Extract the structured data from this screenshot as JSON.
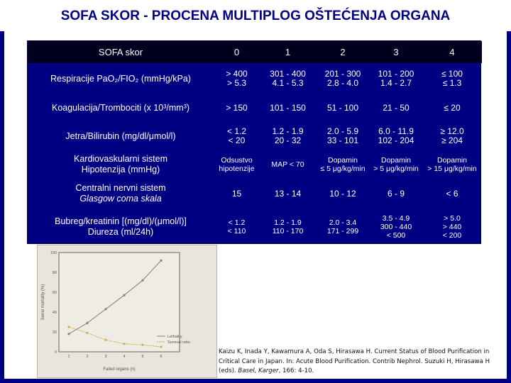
{
  "title": "SOFA SKOR - PROCENA MULTIPLOG OŠTEĆENJA ORGANA",
  "table": {
    "headers": [
      "SOFA skor",
      "0",
      "1",
      "2",
      "3",
      "4"
    ],
    "rows": [
      {
        "label": [
          "Respiracije PaO₂/FIO₂ (mmHg/kPa)"
        ],
        "cells": [
          [
            "> 400",
            "> 5.3"
          ],
          [
            "301 - 400",
            "4.1 - 5.3"
          ],
          [
            "201 - 300",
            "2.8 - 4.0"
          ],
          [
            "101 - 200",
            "1.4 - 2.7"
          ],
          [
            "≤ 100",
            "≤ 1.3"
          ]
        ]
      },
      {
        "label": [
          "Koagulacija/Trombociti (x 10³/mm³)"
        ],
        "cells": [
          [
            "> 150"
          ],
          [
            "101 - 150"
          ],
          [
            "51 - 100"
          ],
          [
            "21 - 50"
          ],
          [
            "≤ 20"
          ]
        ]
      },
      {
        "label": [
          "Jetra/Bilirubin (mg/dl/μmol/l)"
        ],
        "cells": [
          [
            "< 1.2",
            "< 20"
          ],
          [
            "1.2 - 1.9",
            "20 - 32"
          ],
          [
            "2.0 - 5.9",
            "33 - 101"
          ],
          [
            "6.0 - 11.9",
            "102 - 204"
          ],
          [
            "≥ 12.0",
            "≥ 204"
          ]
        ]
      },
      {
        "label": [
          "Kardiovaskularni sistem",
          "Hipotenzija (mmHg)"
        ],
        "cells": [
          [
            "Odsustvo",
            "hipotenzije"
          ],
          [
            "MAP < 70"
          ],
          [
            "Dopamin",
            "≤ 5 μg/kg/min"
          ],
          [
            "Dopamin",
            "> 5 μg/kg/min"
          ],
          [
            "Dopamin",
            "> 15 μg/kg/min"
          ]
        ]
      },
      {
        "label": [
          "Centralni nervni sistem",
          "Glasgow coma skala"
        ],
        "cells": [
          [
            "15"
          ],
          [
            "13 - 14"
          ],
          [
            "10 - 12"
          ],
          [
            "6 - 9"
          ],
          [
            "< 6"
          ]
        ]
      },
      {
        "label": [
          "Bubreg/kreatinin [(mg/dl)/(μmol/l)]",
          "Diureza (ml/24h)"
        ],
        "cells": [
          [
            "< 1.2",
            "< 110"
          ],
          [
            "1.2 - 1.9",
            "110 - 170"
          ],
          [
            "2.0 - 3.4",
            "171 - 299"
          ],
          [
            "3.5 - 4.9",
            "300 - 440",
            "< 500"
          ],
          [
            "> 5.0",
            "> 440",
            "< 200"
          ]
        ]
      }
    ]
  },
  "figure": {
    "ylabel": "Serial mortality (%)",
    "xlabel": "Failed organs (n)",
    "legend": [
      "Lethality",
      "Survival ratio"
    ],
    "chart_data": {
      "type": "line",
      "categories": [
        "1",
        "2",
        "3",
        "4",
        "5",
        "6"
      ],
      "series": [
        {
          "name": "Lethality",
          "values": [
            18,
            29,
            43,
            57,
            72,
            92
          ]
        },
        {
          "name": "Survival ratio",
          "values": [
            25,
            19,
            12,
            8,
            7,
            5
          ]
        }
      ],
      "ylim": [
        0,
        100
      ]
    }
  },
  "citation": {
    "line1": "Kaizu K, Inada Y, Kawamura A, Oda S, Hirasawa H. Current Status of Blood Purification in",
    "line2": "Critical Care in Japan. In: Acute Blood Purification. Contrib Nephrol. Suzuki H, Hirasawa H",
    "line3_prefix": "(eds). ",
    "line3_italic": "Basel, Karger",
    "line3_suffix": ", 166: 4-10."
  },
  "colors": {
    "background": "#000082",
    "header_row": "#00001e",
    "title_text": "#000082",
    "lethality_line": "#8a7e72",
    "survival_line": "#c9b14a"
  }
}
